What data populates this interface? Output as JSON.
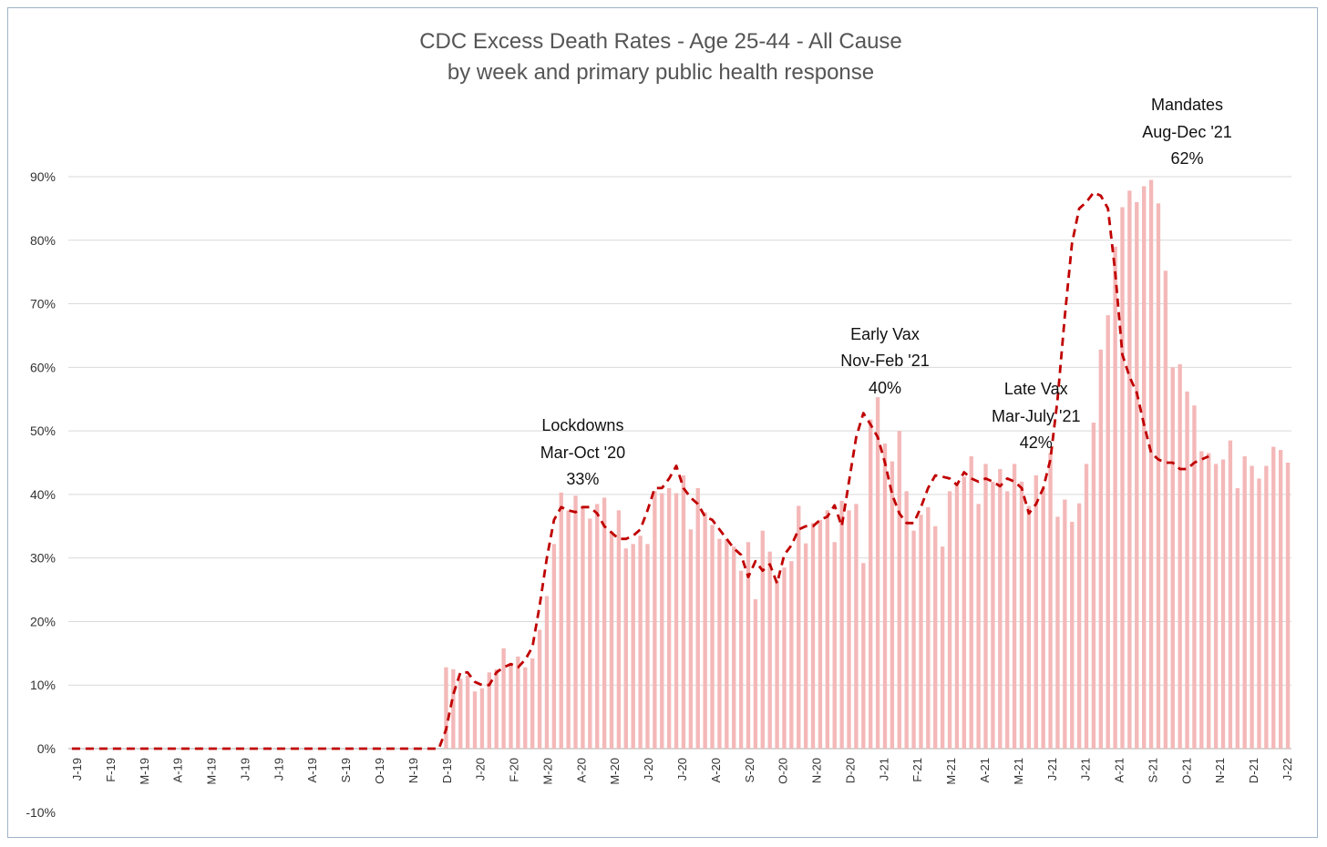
{
  "chart_data": {
    "type": "bar",
    "title": "CDC Excess Death Rates - Age 25-44 - All Cause",
    "subtitle": "by week and primary public health response",
    "xlabel": "",
    "ylabel": "",
    "ylim": [
      -0.1,
      0.9
    ],
    "y_ticks": [
      "90%",
      "80%",
      "70%",
      "60%",
      "50%",
      "40%",
      "30%",
      "20%",
      "10%",
      "0%",
      "-10%"
    ],
    "y_tick_values": [
      0.9,
      0.8,
      0.7,
      0.6,
      0.5,
      0.4,
      0.3,
      0.2,
      0.1,
      0.0,
      -0.1
    ],
    "x_tick_labels": [
      "J-19",
      "F-19",
      "M-19",
      "A-19",
      "M-19",
      "J-19",
      "J-19",
      "A-19",
      "S-19",
      "O-19",
      "N-19",
      "D-19",
      "J-20",
      "F-20",
      "M-20",
      "A-20",
      "M-20",
      "J-20",
      "J-20",
      "A-20",
      "S-20",
      "O-20",
      "N-20",
      "D-20",
      "J-21",
      "F-21",
      "M-21",
      "A-21",
      "M-21",
      "J-21",
      "J-21",
      "A-21",
      "S-21",
      "O-21",
      "N-21",
      "D-21",
      "J-22"
    ],
    "grid": true,
    "legend": "none",
    "colors": {
      "bars": "#f4b8b8",
      "moving_average": "#c00000",
      "gridline": "#d9d9d9"
    },
    "series": [
      {
        "type": "bar",
        "values": [
          0,
          0,
          0,
          0,
          0,
          0,
          0,
          0,
          0,
          0,
          0,
          0,
          0,
          0,
          0,
          0,
          0,
          0,
          0,
          0,
          0,
          0,
          0,
          0,
          0,
          0,
          0,
          0,
          0,
          0,
          0,
          0,
          0,
          0,
          0,
          0,
          0,
          0,
          0,
          0,
          0,
          0,
          0,
          0,
          0,
          0,
          0,
          0,
          0,
          0,
          0,
          0,
          0.128,
          0.125,
          0.11,
          0.115,
          0.09,
          0.095,
          0.12,
          0.125,
          0.158,
          0.135,
          0.145,
          0.128,
          0.142,
          0.187,
          0.24,
          0.322,
          0.403,
          0.375,
          0.398,
          0.382,
          0.362,
          0.385,
          0.395,
          0.342,
          0.375,
          0.315,
          0.322,
          0.335,
          0.322,
          0.405,
          0.402,
          0.41,
          0.402,
          0.43,
          0.345,
          0.41,
          0.372,
          0.352,
          0.33,
          0.33,
          0.318,
          0.28,
          0.325,
          0.235,
          0.343,
          0.31,
          0.265,
          0.285,
          0.295,
          0.382,
          0.323,
          0.355,
          0.36,
          0.375,
          0.325,
          0.39,
          0.375,
          0.385,
          0.292,
          0.518,
          0.553,
          0.48,
          0.452,
          0.5,
          0.405,
          0.343,
          0.368,
          0.38,
          0.35,
          0.318,
          0.405,
          0.415,
          0.428,
          0.46,
          0.385,
          0.448,
          0.42,
          0.44,
          0.405,
          0.448,
          0.42,
          0.382,
          0.43,
          0.41,
          0.465,
          0.365,
          0.392,
          0.357,
          0.386,
          0.448,
          0.513,
          0.628,
          0.682,
          0.79,
          0.852,
          0.878,
          0.86,
          0.885,
          0.895,
          0.858,
          0.752,
          0.6,
          0.605,
          0.562,
          0.54,
          0.468,
          0.465,
          0.448,
          0.455,
          0.485,
          0.41,
          0.46,
          0.445,
          0.425,
          0.445,
          0.475,
          0.47,
          0.45
        ]
      },
      {
        "type": "line",
        "style": "dashed",
        "values": [
          0,
          0,
          0,
          0,
          0,
          0,
          0,
          0,
          0,
          0,
          0,
          0,
          0,
          0,
          0,
          0,
          0,
          0,
          0,
          0,
          0,
          0,
          0,
          0,
          0,
          0,
          0,
          0,
          0,
          0,
          0,
          0,
          0,
          0,
          0,
          0,
          0,
          0,
          0,
          0,
          0,
          0,
          0,
          0,
          0,
          0,
          0,
          0,
          0,
          0,
          0,
          0,
          0.03,
          0.085,
          0.12,
          0.12,
          0.105,
          0.1,
          0.1,
          0.12,
          0.128,
          0.133,
          0.128,
          0.14,
          0.16,
          0.225,
          0.3,
          0.36,
          0.38,
          0.375,
          0.372,
          0.38,
          0.38,
          0.37,
          0.35,
          0.34,
          0.33,
          0.33,
          0.335,
          0.345,
          0.375,
          0.41,
          0.41,
          0.425,
          0.445,
          0.41,
          0.395,
          0.385,
          0.365,
          0.36,
          0.345,
          0.33,
          0.315,
          0.305,
          0.27,
          0.295,
          0.28,
          0.29,
          0.26,
          0.305,
          0.32,
          0.345,
          0.35,
          0.35,
          0.36,
          0.365,
          0.383,
          0.35,
          0.42,
          0.49,
          0.528,
          0.51,
          0.49,
          0.45,
          0.4,
          0.37,
          0.355,
          0.355,
          0.38,
          0.41,
          0.43,
          0.428,
          0.425,
          0.415,
          0.435,
          0.425,
          0.42,
          0.425,
          0.42,
          0.413,
          0.425,
          0.42,
          0.41,
          0.37,
          0.385,
          0.41,
          0.455,
          0.55,
          0.68,
          0.795,
          0.85,
          0.86,
          0.875,
          0.87,
          0.85,
          0.75,
          0.62,
          0.585,
          0.56,
          0.51,
          0.465,
          0.455,
          0.45,
          0.45,
          0.44,
          0.44,
          0.45,
          0.455,
          0.46
        ]
      }
    ],
    "annotations": [
      {
        "lines": [
          "Lockdowns",
          "Mar-Oct '20",
          "33%"
        ],
        "week": 71
      },
      {
        "lines": [
          "Early Vax",
          "Nov-Feb '21",
          "40%"
        ],
        "week": 113
      },
      {
        "lines": [
          "Late Vax",
          "Mar-July '21",
          "42%"
        ],
        "week": 134
      },
      {
        "lines": [
          "Mandates",
          "Aug-Dec '21",
          "62%"
        ],
        "week": 155
      }
    ]
  }
}
